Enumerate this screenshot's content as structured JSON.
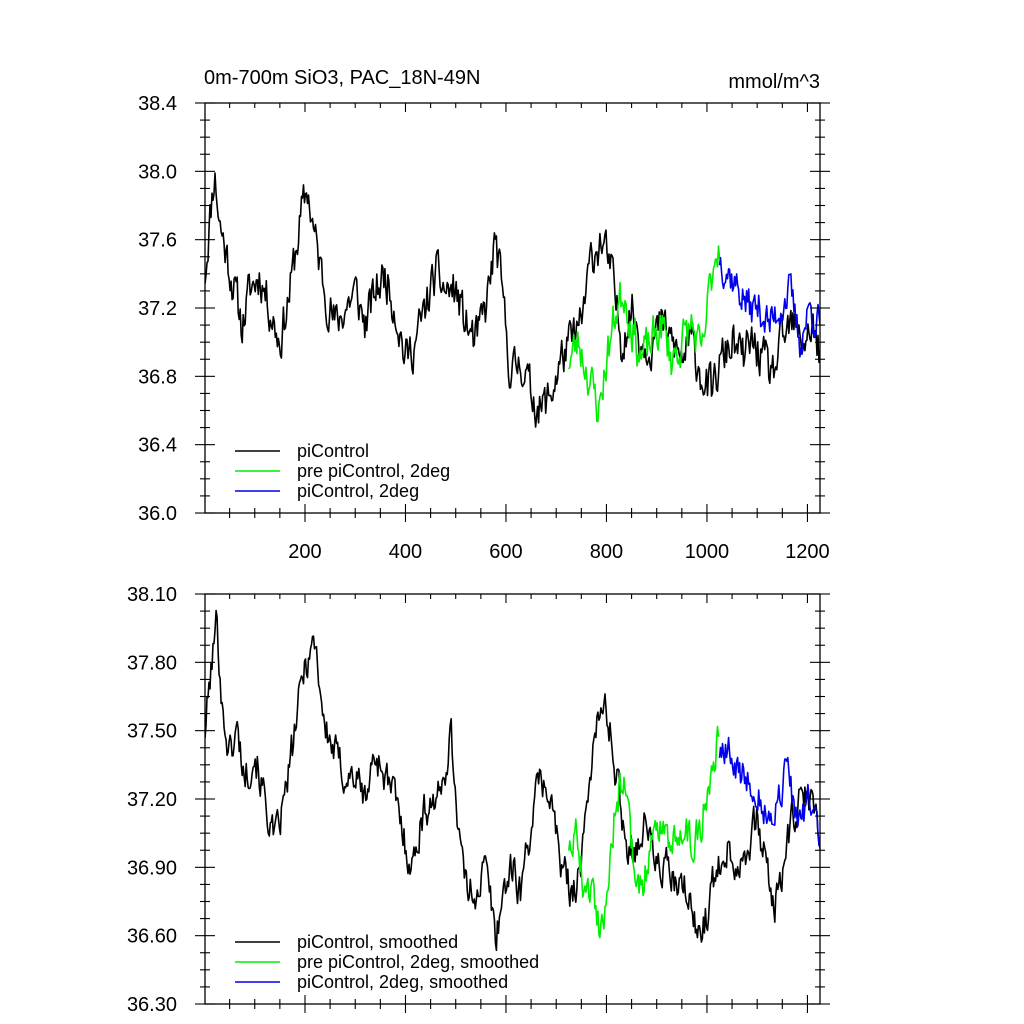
{
  "chart_data": [
    {
      "type": "line",
      "title": "0m-700m SiO3, PAC_18N-49N",
      "units": "mmol/m^3",
      "xlim": [
        1,
        1225
      ],
      "ylim": [
        36.0,
        38.4
      ],
      "x_ticks": [
        200,
        400,
        600,
        800,
        1000,
        1200
      ],
      "y_ticks": [
        "36.0",
        "36.4",
        "36.8",
        "37.2",
        "37.6",
        "38.0",
        "38.4"
      ],
      "legend_position": "bottom-left",
      "series": [
        {
          "name": "piControl",
          "color": "#000000",
          "x_range": [
            1,
            1225
          ],
          "anchors": [
            [
              1,
              37.4
            ],
            [
              10,
              37.7
            ],
            [
              20,
              38.0
            ],
            [
              30,
              37.7
            ],
            [
              45,
              37.5
            ],
            [
              60,
              37.3
            ],
            [
              75,
              37.1
            ],
            [
              90,
              37.3
            ],
            [
              110,
              37.4
            ],
            [
              130,
              37.2
            ],
            [
              150,
              37.0
            ],
            [
              170,
              37.3
            ],
            [
              190,
              37.7
            ],
            [
              205,
              37.9
            ],
            [
              220,
              37.6
            ],
            [
              240,
              37.3
            ],
            [
              260,
              37.1
            ],
            [
              280,
              37.2
            ],
            [
              300,
              37.3
            ],
            [
              320,
              37.1
            ],
            [
              340,
              37.3
            ],
            [
              360,
              37.4
            ],
            [
              380,
              37.2
            ],
            [
              400,
              36.9
            ],
            [
              420,
              37.0
            ],
            [
              440,
              37.2
            ],
            [
              460,
              37.4
            ],
            [
              480,
              37.3
            ],
            [
              500,
              37.3
            ],
            [
              520,
              37.1
            ],
            [
              540,
              37.0
            ],
            [
              560,
              37.2
            ],
            [
              580,
              37.6
            ],
            [
              595,
              37.2
            ],
            [
              610,
              36.8
            ],
            [
              630,
              36.9
            ],
            [
              650,
              36.7
            ],
            [
              670,
              36.6
            ],
            [
              690,
              36.7
            ],
            [
              710,
              36.9
            ],
            [
              730,
              37.0
            ],
            [
              750,
              37.1
            ],
            [
              770,
              37.5
            ],
            [
              790,
              37.6
            ],
            [
              810,
              37.4
            ],
            [
              830,
              37.0
            ],
            [
              850,
              37.2
            ],
            [
              870,
              37.0
            ],
            [
              890,
              37.0
            ],
            [
              910,
              37.1
            ],
            [
              930,
              37.0
            ],
            [
              950,
              36.9
            ],
            [
              970,
              37.0
            ],
            [
              990,
              36.8
            ],
            [
              1010,
              36.7
            ],
            [
              1030,
              36.9
            ],
            [
              1050,
              37.0
            ],
            [
              1070,
              36.9
            ],
            [
              1090,
              37.0
            ],
            [
              1110,
              36.9
            ],
            [
              1130,
              36.8
            ],
            [
              1150,
              37.0
            ],
            [
              1170,
              37.1
            ],
            [
              1190,
              37.0
            ],
            [
              1210,
              37.1
            ],
            [
              1225,
              36.9
            ]
          ],
          "noise": 0.17,
          "seed": 11
        },
        {
          "name": "pre piControl, 2deg",
          "color": "#00ee00",
          "x_range": [
            725,
            1025
          ],
          "anchors": [
            [
              725,
              36.9
            ],
            [
              745,
              37.0
            ],
            [
              765,
              36.8
            ],
            [
              785,
              36.6
            ],
            [
              800,
              36.9
            ],
            [
              820,
              37.2
            ],
            [
              835,
              37.3
            ],
            [
              850,
              37.1
            ],
            [
              870,
              36.9
            ],
            [
              890,
              37.0
            ],
            [
              910,
              37.1
            ],
            [
              930,
              36.9
            ],
            [
              950,
              37.0
            ],
            [
              970,
              37.1
            ],
            [
              990,
              36.9
            ],
            [
              1005,
              37.3
            ],
            [
              1015,
              37.5
            ],
            [
              1025,
              37.6
            ]
          ],
          "noise": 0.17,
          "seed": 23
        },
        {
          "name": "piControl, 2deg",
          "color": "#0000ee",
          "x_range": [
            1025,
            1225
          ],
          "anchors": [
            [
              1025,
              37.5
            ],
            [
              1045,
              37.4
            ],
            [
              1065,
              37.3
            ],
            [
              1085,
              37.2
            ],
            [
              1105,
              37.2
            ],
            [
              1125,
              37.1
            ],
            [
              1145,
              37.2
            ],
            [
              1165,
              37.3
            ],
            [
              1185,
              37.0
            ],
            [
              1205,
              37.2
            ],
            [
              1225,
              37.1
            ]
          ],
          "noise": 0.15,
          "seed": 37
        }
      ]
    },
    {
      "type": "line",
      "xlim": [
        1,
        1225
      ],
      "ylim": [
        36.3,
        38.1
      ],
      "y_ticks": [
        "36.30",
        "36.60",
        "36.90",
        "37.20",
        "37.50",
        "37.80",
        "38.10"
      ],
      "legend_position": "bottom-left",
      "series": [
        {
          "name": "piControl, smoothed",
          "color": "#000000",
          "x_range": [
            1,
            1225
          ],
          "anchors": [
            [
              1,
              37.5
            ],
            [
              10,
              37.7
            ],
            [
              25,
              38.0
            ],
            [
              35,
              37.6
            ],
            [
              50,
              37.4
            ],
            [
              65,
              37.5
            ],
            [
              80,
              37.3
            ],
            [
              100,
              37.4
            ],
            [
              120,
              37.2
            ],
            [
              140,
              37.0
            ],
            [
              160,
              37.2
            ],
            [
              180,
              37.5
            ],
            [
              200,
              37.8
            ],
            [
              220,
              37.9
            ],
            [
              240,
              37.5
            ],
            [
              260,
              37.4
            ],
            [
              280,
              37.3
            ],
            [
              300,
              37.3
            ],
            [
              320,
              37.2
            ],
            [
              340,
              37.4
            ],
            [
              360,
              37.3
            ],
            [
              380,
              37.2
            ],
            [
              400,
              37.0
            ],
            [
              415,
              36.9
            ],
            [
              430,
              37.1
            ],
            [
              450,
              37.2
            ],
            [
              470,
              37.2
            ],
            [
              490,
              37.5
            ],
            [
              505,
              37.1
            ],
            [
              520,
              36.8
            ],
            [
              540,
              36.8
            ],
            [
              560,
              36.9
            ],
            [
              580,
              36.6
            ],
            [
              595,
              36.8
            ],
            [
              610,
              36.9
            ],
            [
              630,
              36.8
            ],
            [
              650,
              37.1
            ],
            [
              670,
              37.3
            ],
            [
              690,
              37.2
            ],
            [
              710,
              36.9
            ],
            [
              730,
              36.8
            ],
            [
              750,
              36.9
            ],
            [
              775,
              37.5
            ],
            [
              800,
              37.6
            ],
            [
              820,
              37.3
            ],
            [
              840,
              37.0
            ],
            [
              860,
              37.0
            ],
            [
              880,
              37.1
            ],
            [
              900,
              36.9
            ],
            [
              920,
              36.9
            ],
            [
              940,
              36.8
            ],
            [
              960,
              36.8
            ],
            [
              980,
              36.6
            ],
            [
              1000,
              36.7
            ],
            [
              1020,
              36.9
            ],
            [
              1040,
              37.0
            ],
            [
              1060,
              36.9
            ],
            [
              1080,
              37.0
            ],
            [
              1100,
              37.1
            ],
            [
              1120,
              36.9
            ],
            [
              1135,
              36.7
            ],
            [
              1150,
              36.9
            ],
            [
              1170,
              37.1
            ],
            [
              1190,
              37.2
            ],
            [
              1210,
              37.2
            ],
            [
              1225,
              37.0
            ]
          ],
          "noise": 0.11,
          "seed": 101
        },
        {
          "name": "pre piControl, 2deg, smoothed",
          "color": "#00ee00",
          "x_range": [
            725,
            1025
          ],
          "anchors": [
            [
              725,
              37.0
            ],
            [
              740,
              37.1
            ],
            [
              755,
              36.8
            ],
            [
              775,
              36.8
            ],
            [
              790,
              36.6
            ],
            [
              805,
              36.9
            ],
            [
              820,
              37.2
            ],
            [
              835,
              37.3
            ],
            [
              850,
              37.0
            ],
            [
              870,
              36.8
            ],
            [
              890,
              37.0
            ],
            [
              910,
              37.1
            ],
            [
              930,
              37.0
            ],
            [
              950,
              37.1
            ],
            [
              970,
              37.0
            ],
            [
              990,
              37.1
            ],
            [
              1005,
              37.3
            ],
            [
              1015,
              37.4
            ],
            [
              1025,
              37.5
            ]
          ],
          "noise": 0.11,
          "seed": 202
        },
        {
          "name": "piControl, 2deg, smoothed",
          "color": "#0000ee",
          "x_range": [
            1025,
            1225
          ],
          "anchors": [
            [
              1025,
              37.4
            ],
            [
              1045,
              37.4
            ],
            [
              1065,
              37.3
            ],
            [
              1085,
              37.3
            ],
            [
              1105,
              37.2
            ],
            [
              1125,
              37.1
            ],
            [
              1145,
              37.2
            ],
            [
              1160,
              37.4
            ],
            [
              1175,
              37.1
            ],
            [
              1190,
              37.1
            ],
            [
              1205,
              37.2
            ],
            [
              1225,
              37.0
            ]
          ],
          "noise": 0.1,
          "seed": 303
        }
      ]
    }
  ]
}
